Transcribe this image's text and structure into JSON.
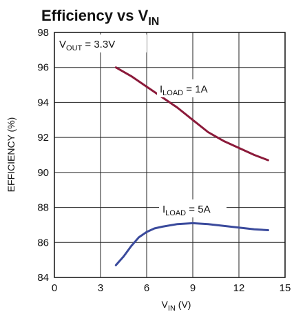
{
  "chart_data": {
    "type": "line",
    "title": {
      "main": "Efficiency vs V",
      "sub": "IN"
    },
    "xlabel": {
      "main": "V",
      "sub": "IN",
      "suffix": " (V)"
    },
    "ylabel": "EFFICIENCY (%)",
    "xlim": [
      0,
      15
    ],
    "ylim": [
      84,
      98
    ],
    "x_ticks": [
      0,
      3,
      6,
      9,
      12,
      15
    ],
    "y_ticks": [
      84,
      86,
      88,
      90,
      92,
      94,
      96,
      98
    ],
    "grid": true,
    "annotations": [
      {
        "main": "V",
        "sub": "OUT",
        "suffix": " = 3.3V"
      }
    ],
    "series": [
      {
        "name": {
          "main": "I",
          "sub": "LOAD",
          "suffix": " = 1A"
        },
        "color": "#8b1a3a",
        "x": [
          4.0,
          5.0,
          6.0,
          7.0,
          8.0,
          9.0,
          10.0,
          11.0,
          12.0,
          13.0,
          13.9
        ],
        "y": [
          96.0,
          95.5,
          94.9,
          94.3,
          93.7,
          93.0,
          92.3,
          91.8,
          91.4,
          91.0,
          90.7
        ]
      },
      {
        "name": {
          "main": "I",
          "sub": "LOAD",
          "suffix": " = 5A"
        },
        "color": "#3a4a9c",
        "x": [
          4.0,
          4.5,
          5.0,
          5.5,
          6.0,
          6.5,
          7.0,
          8.0,
          9.0,
          10.0,
          11.0,
          12.0,
          13.0,
          13.9
        ],
        "y": [
          84.7,
          85.2,
          85.8,
          86.3,
          86.6,
          86.8,
          86.9,
          87.05,
          87.1,
          87.05,
          86.95,
          86.85,
          86.75,
          86.7
        ]
      }
    ]
  }
}
